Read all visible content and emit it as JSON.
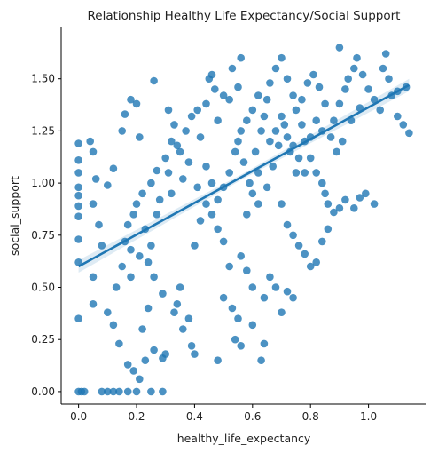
{
  "chart_data": {
    "type": "scatter",
    "title": "Relationship Healthy Life Expectancy/Social Support",
    "xlabel": "healthy_life_expectancy",
    "ylabel": "social_support",
    "xlim": [
      -0.06,
      1.2
    ],
    "ylim": [
      -0.06,
      1.75
    ],
    "x_ticks": [
      0.0,
      0.2,
      0.4,
      0.6,
      0.8,
      1.0
    ],
    "x_tick_labels": [
      "0.0",
      "0.2",
      "0.4",
      "0.6",
      "0.8",
      "1.0"
    ],
    "y_ticks": [
      0.0,
      0.25,
      0.5,
      0.75,
      1.0,
      1.25,
      1.5
    ],
    "y_tick_labels": [
      "0.00",
      "0.25",
      "0.50",
      "0.75",
      "1.00",
      "1.25",
      "1.50"
    ],
    "grid": false,
    "color": "#1f77b4",
    "regression_line": {
      "x": [
        0.0,
        1.14
      ],
      "y": [
        0.6,
        1.47
      ]
    },
    "points": [
      [
        0.0,
        0.0
      ],
      [
        0.01,
        0.0
      ],
      [
        0.02,
        0.0
      ],
      [
        0.08,
        0.0
      ],
      [
        0.1,
        0.0
      ],
      [
        0.12,
        0.0
      ],
      [
        0.14,
        0.0
      ],
      [
        0.17,
        0.0
      ],
      [
        0.2,
        0.0
      ],
      [
        0.25,
        0.0
      ],
      [
        0.29,
        0.0
      ],
      [
        0.0,
        0.35
      ],
      [
        0.0,
        0.62
      ],
      [
        0.0,
        0.73
      ],
      [
        0.0,
        0.84
      ],
      [
        0.0,
        0.89
      ],
      [
        0.0,
        0.94
      ],
      [
        0.0,
        0.98
      ],
      [
        0.0,
        1.05
      ],
      [
        0.0,
        1.11
      ],
      [
        0.0,
        1.19
      ],
      [
        0.04,
        1.2
      ],
      [
        0.05,
        1.15
      ],
      [
        0.06,
        1.02
      ],
      [
        0.05,
        0.9
      ],
      [
        0.07,
        0.8
      ],
      [
        0.08,
        0.7
      ],
      [
        0.05,
        0.55
      ],
      [
        0.1,
        0.38
      ],
      [
        0.05,
        0.42
      ],
      [
        0.12,
        0.32
      ],
      [
        0.1,
        0.99
      ],
      [
        0.12,
        1.07
      ],
      [
        0.15,
        1.25
      ],
      [
        0.16,
        1.33
      ],
      [
        0.18,
        1.4
      ],
      [
        0.2,
        1.38
      ],
      [
        0.21,
        1.22
      ],
      [
        0.15,
        0.6
      ],
      [
        0.18,
        0.55
      ],
      [
        0.13,
        0.5
      ],
      [
        0.14,
        0.23
      ],
      [
        0.17,
        0.13
      ],
      [
        0.19,
        0.1
      ],
      [
        0.21,
        0.06
      ],
      [
        0.23,
        0.15
      ],
      [
        0.26,
        0.2
      ],
      [
        0.22,
        0.3
      ],
      [
        0.3,
        0.18
      ],
      [
        0.29,
        0.16
      ],
      [
        0.24,
        0.4
      ],
      [
        0.26,
        1.49
      ],
      [
        0.3,
        1.12
      ],
      [
        0.32,
        1.2
      ],
      [
        0.31,
        1.05
      ],
      [
        0.28,
        0.92
      ],
      [
        0.27,
        0.85
      ],
      [
        0.25,
        0.7
      ],
      [
        0.24,
        0.62
      ],
      [
        0.26,
        0.55
      ],
      [
        0.29,
        0.47
      ],
      [
        0.33,
        0.38
      ],
      [
        0.35,
        0.5
      ],
      [
        0.34,
        0.42
      ],
      [
        0.36,
        0.3
      ],
      [
        0.38,
        0.35
      ],
      [
        0.39,
        0.22
      ],
      [
        0.4,
        0.18
      ],
      [
        0.4,
        0.7
      ],
      [
        0.41,
        0.98
      ],
      [
        0.42,
        1.22
      ],
      [
        0.44,
        1.38
      ],
      [
        0.45,
        1.5
      ],
      [
        0.46,
        1.52
      ],
      [
        0.47,
        1.45
      ],
      [
        0.48,
        1.3
      ],
      [
        0.5,
        1.42
      ],
      [
        0.52,
        1.4
      ],
      [
        0.53,
        1.55
      ],
      [
        0.56,
        1.6
      ],
      [
        0.55,
        1.46
      ],
      [
        0.48,
        0.15
      ],
      [
        0.5,
        0.45
      ],
      [
        0.52,
        0.6
      ],
      [
        0.53,
        0.4
      ],
      [
        0.55,
        0.35
      ],
      [
        0.54,
        0.25
      ],
      [
        0.56,
        0.22
      ],
      [
        0.6,
        0.32
      ],
      [
        0.63,
        0.15
      ],
      [
        0.64,
        0.23
      ],
      [
        0.58,
        0.85
      ],
      [
        0.6,
        0.95
      ],
      [
        0.62,
        1.05
      ],
      [
        0.61,
        1.15
      ],
      [
        0.63,
        1.25
      ],
      [
        0.64,
        1.32
      ],
      [
        0.65,
        1.4
      ],
      [
        0.66,
        1.48
      ],
      [
        0.68,
        1.55
      ],
      [
        0.7,
        1.6
      ],
      [
        0.72,
        1.5
      ],
      [
        0.74,
        1.42
      ],
      [
        0.75,
        1.35
      ],
      [
        0.77,
        1.28
      ],
      [
        0.78,
        1.2
      ],
      [
        0.8,
        1.12
      ],
      [
        0.82,
        1.05
      ],
      [
        0.84,
        1.0
      ],
      [
        0.85,
        0.95
      ],
      [
        0.86,
        0.9
      ],
      [
        0.88,
        1.3
      ],
      [
        0.9,
        1.38
      ],
      [
        0.92,
        1.45
      ],
      [
        0.93,
        1.5
      ],
      [
        0.95,
        1.55
      ],
      [
        0.96,
        1.6
      ],
      [
        0.98,
        1.52
      ],
      [
        1.0,
        1.45
      ],
      [
        1.02,
        1.4
      ],
      [
        1.04,
        1.35
      ],
      [
        1.05,
        1.55
      ],
      [
        1.06,
        1.62
      ],
      [
        1.07,
        1.5
      ],
      [
        1.08,
        1.42
      ],
      [
        1.1,
        1.32
      ],
      [
        1.12,
        1.28
      ],
      [
        1.14,
        1.24
      ],
      [
        1.13,
        1.46
      ],
      [
        1.1,
        1.44
      ],
      [
        0.9,
        1.65
      ],
      [
        0.7,
        0.9
      ],
      [
        0.72,
        0.8
      ],
      [
        0.74,
        0.75
      ],
      [
        0.76,
        0.7
      ],
      [
        0.78,
        0.66
      ],
      [
        0.8,
        0.6
      ],
      [
        0.82,
        0.62
      ],
      [
        0.84,
        0.72
      ],
      [
        0.86,
        0.78
      ],
      [
        0.88,
        0.86
      ],
      [
        0.9,
        0.88
      ],
      [
        0.92,
        0.92
      ],
      [
        0.95,
        0.88
      ],
      [
        0.97,
        0.93
      ],
      [
        0.99,
        0.95
      ],
      [
        1.02,
        0.9
      ],
      [
        0.68,
        0.5
      ],
      [
        0.72,
        0.48
      ],
      [
        0.74,
        0.45
      ],
      [
        0.7,
        0.38
      ],
      [
        0.66,
        0.55
      ],
      [
        0.64,
        0.45
      ],
      [
        0.6,
        0.5
      ],
      [
        0.58,
        0.58
      ],
      [
        0.56,
        0.65
      ],
      [
        0.5,
        0.72
      ],
      [
        0.48,
        0.78
      ],
      [
        0.46,
        0.85
      ],
      [
        0.44,
        0.9
      ],
      [
        0.42,
        0.82
      ],
      [
        0.36,
        1.02
      ],
      [
        0.38,
        1.1
      ],
      [
        0.35,
        1.15
      ],
      [
        0.37,
        1.25
      ],
      [
        0.39,
        1.32
      ],
      [
        0.41,
        1.35
      ],
      [
        0.33,
        1.28
      ],
      [
        0.31,
        1.35
      ],
      [
        0.34,
        1.18
      ],
      [
        0.32,
        0.95
      ],
      [
        0.2,
        0.9
      ],
      [
        0.22,
        0.95
      ],
      [
        0.19,
        0.85
      ],
      [
        0.17,
        0.8
      ],
      [
        0.16,
        0.72
      ],
      [
        0.18,
        0.68
      ],
      [
        0.21,
        0.65
      ],
      [
        0.23,
        0.78
      ],
      [
        0.25,
        1.0
      ],
      [
        0.27,
        1.06
      ],
      [
        0.55,
        1.2
      ],
      [
        0.57,
        1.1
      ],
      [
        0.59,
        1.0
      ],
      [
        0.62,
        0.9
      ],
      [
        0.65,
        0.98
      ],
      [
        0.67,
        1.08
      ],
      [
        0.69,
        1.18
      ],
      [
        0.71,
        1.28
      ],
      [
        0.73,
        1.15
      ],
      [
        0.75,
        1.05
      ],
      [
        0.77,
        1.4
      ],
      [
        0.79,
        1.48
      ],
      [
        0.81,
        1.52
      ],
      [
        0.83,
        1.46
      ],
      [
        0.85,
        1.38
      ],
      [
        0.87,
        1.22
      ],
      [
        0.89,
        1.15
      ],
      [
        0.91,
        1.2
      ],
      [
        0.94,
        1.3
      ],
      [
        0.97,
        1.36
      ],
      [
        0.6,
        1.35
      ],
      [
        0.62,
        1.42
      ],
      [
        0.58,
        1.3
      ],
      [
        0.56,
        1.25
      ],
      [
        0.54,
        1.15
      ],
      [
        0.52,
        1.05
      ],
      [
        0.5,
        0.98
      ],
      [
        0.48,
        0.92
      ],
      [
        0.46,
        1.0
      ],
      [
        0.44,
        1.08
      ],
      [
        0.66,
        1.2
      ],
      [
        0.68,
        1.25
      ],
      [
        0.7,
        1.32
      ],
      [
        0.72,
        1.22
      ],
      [
        0.74,
        1.18
      ],
      [
        0.76,
        1.12
      ],
      [
        0.78,
        1.05
      ],
      [
        0.8,
        1.22
      ],
      [
        0.82,
        1.3
      ],
      [
        0.84,
        1.25
      ]
    ]
  }
}
